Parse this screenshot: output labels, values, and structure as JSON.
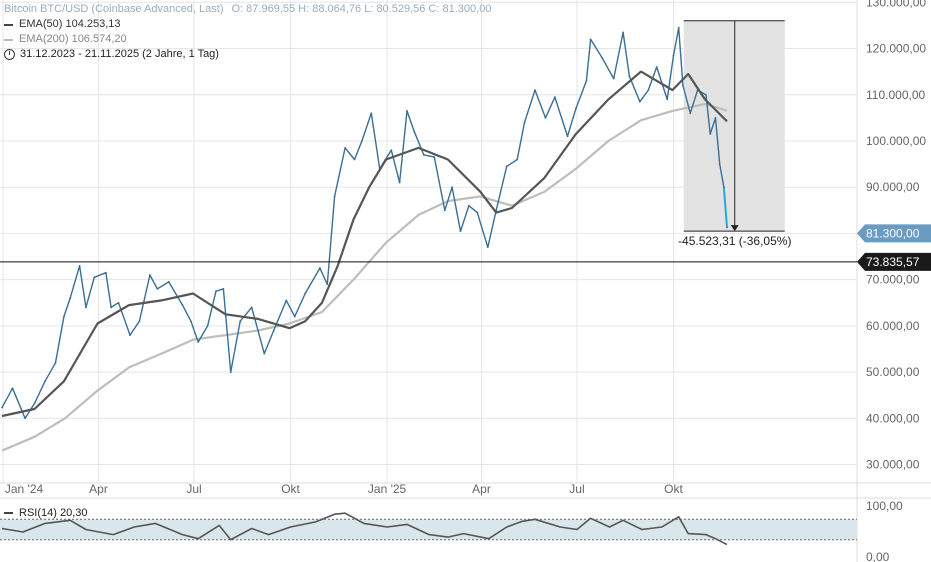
{
  "legend": {
    "instrument": "Bitcoin BTC/USD (Coinbase Advanced, Last)",
    "ohlc": "O: 87.969,55  H: 88.064,76  L: 80.529,56  C: 81.300,00",
    "ema50": "EMA(50)  104.253,13",
    "ema200": "EMA(200)  106.574,20",
    "range": "31.12.2023 - 21.11.2025  (2 Jahre, 1 Tag)",
    "rsi": "RSI(14)  20,30"
  },
  "colors": {
    "price": "#3b6e94",
    "price_last": "#2aa8e0",
    "ema50": "#555555",
    "ema200": "#bdbdb9",
    "grid": "#e6e6e6",
    "range_box": "#e3e3e3",
    "badge_last": "#6a9bc2",
    "badge_level": "#1a1a1a",
    "rsi_band": "#d9e6ec",
    "rsi_line": "#555555"
  },
  "chart_data": {
    "type": "line",
    "title": "Bitcoin BTC/USD (Coinbase Advanced, Last)",
    "x_labels": [
      "Jan '24",
      "Apr",
      "Jul",
      "Okt",
      "Jan '25",
      "Apr",
      "Jul",
      "Okt"
    ],
    "y_tick_labels": [
      "30.000,00",
      "40.000,00",
      "50.000,00",
      "60.000,00",
      "70.000,00",
      "80.000,00",
      "90.000,00",
      "100.000,00",
      "110.000,00",
      "120.000,00",
      "130.000,00"
    ],
    "ylim": [
      26000,
      130500
    ],
    "x_range": [
      "2023-12-31",
      "2025-11-21"
    ],
    "series": [
      {
        "name": "Bitcoin BTC/USD",
        "x": [
          "2023-12-31",
          "2024-01-10",
          "2024-01-22",
          "2024-01-31",
          "2024-02-10",
          "2024-02-20",
          "2024-02-28",
          "2024-03-05",
          "2024-03-14",
          "2024-03-20",
          "2024-03-28",
          "2024-04-08",
          "2024-04-13",
          "2024-04-20",
          "2024-05-01",
          "2024-05-10",
          "2024-05-20",
          "2024-05-27",
          "2024-06-07",
          "2024-06-20",
          "2024-06-28",
          "2024-07-05",
          "2024-07-14",
          "2024-07-22",
          "2024-07-29",
          "2024-08-05",
          "2024-08-14",
          "2024-08-25",
          "2024-09-06",
          "2024-09-15",
          "2024-09-27",
          "2024-10-05",
          "2024-10-15",
          "2024-10-29",
          "2024-11-05",
          "2024-11-12",
          "2024-11-22",
          "2024-12-01",
          "2024-12-08",
          "2024-12-17",
          "2024-12-25",
          "2025-01-05",
          "2025-01-13",
          "2025-01-20",
          "2025-01-27",
          "2025-02-05",
          "2025-02-15",
          "2025-02-25",
          "2025-03-04",
          "2025-03-12",
          "2025-03-20",
          "2025-03-28",
          "2025-04-07",
          "2025-04-15",
          "2025-04-25",
          "2025-05-05",
          "2025-05-12",
          "2025-05-22",
          "2025-06-01",
          "2025-06-10",
          "2025-06-22",
          "2025-06-30",
          "2025-07-10",
          "2025-07-14",
          "2025-07-25",
          "2025-08-05",
          "2025-08-14",
          "2025-08-20",
          "2025-08-30",
          "2025-09-07",
          "2025-09-15",
          "2025-09-25",
          "2025-10-01",
          "2025-10-06",
          "2025-10-10",
          "2025-10-17",
          "2025-10-24",
          "2025-11-01",
          "2025-11-05",
          "2025-11-10",
          "2025-11-14",
          "2025-11-18",
          "2025-11-21"
        ],
        "values": [
          42300,
          46500,
          40000,
          43200,
          48000,
          52000,
          62000,
          66000,
          73000,
          64000,
          70500,
          71500,
          64000,
          65000,
          58000,
          61000,
          71000,
          68000,
          69500,
          64500,
          61000,
          56500,
          60000,
          67500,
          68000,
          50000,
          61000,
          64000,
          54000,
          59000,
          65500,
          62000,
          67000,
          72500,
          69000,
          88000,
          98500,
          96000,
          100000,
          106000,
          94000,
          98000,
          91000,
          106500,
          102000,
          97000,
          96500,
          85000,
          90000,
          80500,
          86000,
          84500,
          77000,
          85000,
          94500,
          96000,
          104000,
          111000,
          105000,
          109500,
          101000,
          107000,
          113000,
          122000,
          118000,
          113500,
          123500,
          114000,
          108500,
          111000,
          116000,
          109000,
          118500,
          124500,
          112000,
          106000,
          111000,
          110000,
          101500,
          105000,
          95000,
          90000,
          81300
        ]
      },
      {
        "name": "EMA(50)",
        "x": [
          "2023-12-31",
          "2024-01-31",
          "2024-02-28",
          "2024-03-31",
          "2024-04-30",
          "2024-05-31",
          "2024-06-30",
          "2024-07-31",
          "2024-08-31",
          "2024-09-30",
          "2024-10-15",
          "2024-10-31",
          "2024-11-15",
          "2024-11-30",
          "2024-12-15",
          "2024-12-31",
          "2025-01-31",
          "2025-02-28",
          "2025-03-31",
          "2025-04-15",
          "2025-04-30",
          "2025-05-31",
          "2025-06-30",
          "2025-07-31",
          "2025-08-31",
          "2025-09-30",
          "2025-10-15",
          "2025-10-31",
          "2025-11-21"
        ],
        "values": [
          40500,
          42000,
          48000,
          60500,
          64500,
          65500,
          67000,
          62500,
          61500,
          59500,
          61000,
          65000,
          73000,
          83000,
          90000,
          96000,
          98500,
          96000,
          89000,
          84500,
          85500,
          92000,
          101500,
          109000,
          115000,
          111000,
          114500,
          109000,
          104253
        ]
      },
      {
        "name": "EMA(200)",
        "x": [
          "2023-12-31",
          "2024-01-31",
          "2024-02-29",
          "2024-03-31",
          "2024-04-30",
          "2024-05-31",
          "2024-06-30",
          "2024-07-31",
          "2024-08-31",
          "2024-09-30",
          "2024-10-31",
          "2024-11-30",
          "2024-12-31",
          "2025-01-31",
          "2025-02-28",
          "2025-03-31",
          "2025-04-30",
          "2025-05-31",
          "2025-06-30",
          "2025-07-31",
          "2025-08-31",
          "2025-09-30",
          "2025-10-31",
          "2025-11-21"
        ],
        "values": [
          33000,
          36000,
          40000,
          46000,
          51000,
          54000,
          57000,
          58000,
          59000,
          60500,
          63000,
          70000,
          78000,
          84000,
          87000,
          88000,
          86000,
          89000,
          94000,
          100000,
          104500,
          106500,
          108000,
          106574
        ]
      }
    ],
    "drawdown": {
      "from": "2025-10-06",
      "to": "2025-11-21",
      "high": 126000,
      "low": 80500,
      "label": "-45.523,31 (-36,05%)"
    },
    "last_price": {
      "value": 81300,
      "label": "81.300,00"
    },
    "level_line": {
      "value": 73835.57,
      "label": "73.835,57"
    },
    "rsi": {
      "name": "RSI(14)",
      "band": [
        30,
        70
      ],
      "ylim": [
        0,
        100
      ],
      "tick_labels": [
        "100,00",
        "0,00"
      ],
      "last": 20.3,
      "x": [
        "2023-12-31",
        "2024-01-20",
        "2024-02-10",
        "2024-03-05",
        "2024-03-20",
        "2024-04-15",
        "2024-05-05",
        "2024-05-25",
        "2024-06-20",
        "2024-07-05",
        "2024-07-25",
        "2024-08-05",
        "2024-08-25",
        "2024-09-10",
        "2024-10-01",
        "2024-10-25",
        "2024-11-12",
        "2024-11-22",
        "2024-12-10",
        "2025-01-01",
        "2025-01-20",
        "2025-02-10",
        "2025-02-28",
        "2025-03-15",
        "2025-04-08",
        "2025-04-25",
        "2025-05-10",
        "2025-05-22",
        "2025-06-15",
        "2025-07-01",
        "2025-07-14",
        "2025-08-01",
        "2025-08-14",
        "2025-09-01",
        "2025-09-20",
        "2025-10-06",
        "2025-10-15",
        "2025-11-01",
        "2025-11-10",
        "2025-11-21"
      ],
      "values": [
        52,
        45,
        62,
        68,
        50,
        40,
        55,
        62,
        40,
        32,
        58,
        30,
        52,
        40,
        55,
        65,
        80,
        82,
        62,
        55,
        60,
        40,
        35,
        42,
        32,
        55,
        66,
        70,
        55,
        50,
        72,
        55,
        68,
        50,
        55,
        75,
        42,
        40,
        32,
        20.3
      ]
    }
  }
}
